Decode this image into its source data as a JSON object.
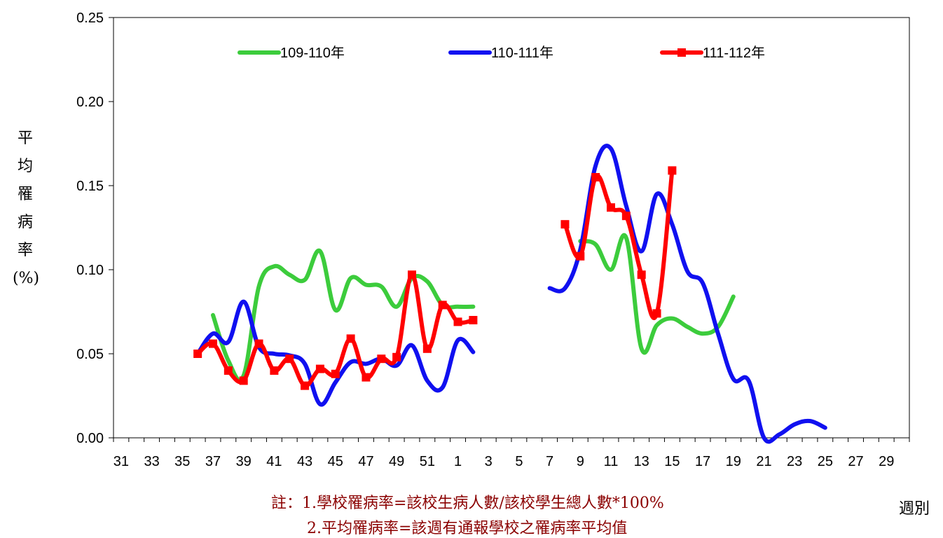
{
  "title": {
    "main": "",
    "suffix": ""
  },
  "chart_data": {
    "type": "line",
    "ylabel": "平均罹病率(%)",
    "xlabel": "週別",
    "ylim": [
      0,
      0.25
    ],
    "yticks": [
      "0.00",
      "0.05",
      "0.10",
      "0.15",
      "0.20",
      "0.25"
    ],
    "week_order": [
      31,
      32,
      33,
      34,
      35,
      36,
      37,
      38,
      39,
      40,
      41,
      42,
      43,
      44,
      45,
      46,
      47,
      48,
      49,
      50,
      51,
      52,
      1,
      2,
      3,
      4,
      5,
      6,
      7,
      8,
      9,
      10,
      11,
      12,
      13,
      14,
      15,
      16,
      17,
      18,
      19,
      20,
      21,
      22,
      23,
      24,
      25,
      26,
      27,
      28,
      29,
      30
    ],
    "xtick_labels": [
      "31",
      "33",
      "35",
      "37",
      "39",
      "41",
      "43",
      "45",
      "47",
      "49",
      "51",
      "1",
      "3",
      "5",
      "7",
      "9",
      "11",
      "13",
      "15",
      "17",
      "19",
      "21",
      "23",
      "25",
      "27",
      "29"
    ],
    "legend_position": "top",
    "series": [
      {
        "name": "109-110年",
        "color": "#3ccc3c",
        "marker": "none",
        "points": [
          [
            37,
            0.073
          ],
          [
            38,
            0.046
          ],
          [
            39,
            0.037
          ],
          [
            40,
            0.09
          ],
          [
            41,
            0.102
          ],
          [
            42,
            0.097
          ],
          [
            43,
            0.094
          ],
          [
            44,
            0.111
          ],
          [
            45,
            0.076
          ],
          [
            46,
            0.095
          ],
          [
            47,
            0.091
          ],
          [
            48,
            0.09
          ],
          [
            49,
            0.078
          ],
          [
            50,
            0.095
          ],
          [
            51,
            0.093
          ],
          [
            52,
            0.079
          ],
          [
            1,
            0.078
          ],
          [
            2,
            0.078
          ],
          null,
          [
            9,
            0.117
          ],
          [
            10,
            0.115
          ],
          [
            11,
            0.1
          ],
          [
            12,
            0.119
          ],
          [
            13,
            0.053
          ],
          [
            14,
            0.067
          ],
          [
            15,
            0.071
          ],
          [
            16,
            0.066
          ],
          [
            17,
            0.062
          ],
          [
            18,
            0.066
          ],
          [
            19,
            0.084
          ]
        ]
      },
      {
        "name": "110-111年",
        "color": "#1010f0",
        "marker": "none",
        "points": [
          [
            36,
            0.05
          ],
          [
            37,
            0.062
          ],
          [
            38,
            0.057
          ],
          [
            39,
            0.081
          ],
          [
            40,
            0.054
          ],
          [
            41,
            0.05
          ],
          [
            42,
            0.049
          ],
          [
            43,
            0.044
          ],
          [
            44,
            0.02
          ],
          [
            45,
            0.033
          ],
          [
            46,
            0.045
          ],
          [
            47,
            0.044
          ],
          [
            48,
            0.047
          ],
          [
            49,
            0.043
          ],
          [
            50,
            0.055
          ],
          [
            51,
            0.034
          ],
          [
            52,
            0.03
          ],
          [
            1,
            0.058
          ],
          [
            2,
            0.051
          ],
          null,
          [
            7,
            0.089
          ],
          [
            8,
            0.089
          ],
          [
            9,
            0.112
          ],
          [
            10,
            0.162
          ],
          [
            11,
            0.172
          ],
          [
            12,
            0.138
          ],
          [
            13,
            0.111
          ],
          [
            14,
            0.145
          ],
          [
            15,
            0.127
          ],
          [
            16,
            0.099
          ],
          [
            17,
            0.092
          ],
          [
            18,
            0.062
          ],
          [
            19,
            0.035
          ],
          [
            20,
            0.034
          ],
          [
            21,
            0.0
          ],
          [
            22,
            0.002
          ],
          [
            23,
            0.008
          ],
          [
            24,
            0.01
          ],
          [
            25,
            0.006
          ]
        ]
      },
      {
        "name": "111-112年",
        "color": "#ff0000",
        "marker": "square",
        "points": [
          [
            36,
            0.05
          ],
          [
            37,
            0.056
          ],
          [
            38,
            0.04
          ],
          [
            39,
            0.034
          ],
          [
            40,
            0.056
          ],
          [
            41,
            0.04
          ],
          [
            42,
            0.047
          ],
          [
            43,
            0.031
          ],
          [
            44,
            0.041
          ],
          [
            45,
            0.038
          ],
          [
            46,
            0.059
          ],
          [
            47,
            0.036
          ],
          [
            48,
            0.047
          ],
          [
            49,
            0.048
          ],
          [
            50,
            0.097
          ],
          [
            51,
            0.053
          ],
          [
            52,
            0.079
          ],
          [
            1,
            0.069
          ],
          [
            2,
            0.07
          ],
          null,
          [
            8,
            0.127
          ],
          [
            9,
            0.108
          ],
          [
            10,
            0.155
          ],
          [
            11,
            0.137
          ],
          [
            12,
            0.132
          ],
          [
            13,
            0.097
          ],
          [
            14,
            0.074
          ],
          [
            15,
            0.159
          ]
        ]
      }
    ]
  },
  "notes": {
    "line1": "註：1.學校罹病率=該校生病人數/該校學生總人數*100%",
    "line2": "2.平均罹病率=該週有通報學校之罹病率平均值"
  }
}
